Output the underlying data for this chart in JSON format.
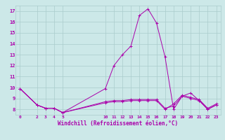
{
  "bg_color": "#cce8e8",
  "line_color": "#aa00aa",
  "grid_color": "#aacccc",
  "title": "Windchill (Refroidissement éolien,°C)",
  "xlim": [
    -0.5,
    23.5
  ],
  "ylim": [
    7.5,
    17.5
  ],
  "yticks": [
    8,
    9,
    10,
    11,
    12,
    13,
    14,
    15,
    16,
    17
  ],
  "xticks": [
    0,
    2,
    3,
    4,
    5,
    10,
    11,
    12,
    13,
    14,
    15,
    16,
    17,
    18,
    19,
    20,
    21,
    22,
    23
  ],
  "series1_x": [
    0,
    2,
    3,
    4,
    5,
    10,
    11,
    12,
    13,
    14,
    15,
    16,
    17,
    18,
    19,
    20,
    21,
    22,
    23
  ],
  "series1_y": [
    9.9,
    8.4,
    8.1,
    8.1,
    7.7,
    9.9,
    12.0,
    13.0,
    13.8,
    16.6,
    17.2,
    15.9,
    12.8,
    8.0,
    9.2,
    9.5,
    8.8,
    8.0,
    8.4
  ],
  "series2_x": [
    0,
    2,
    3,
    4,
    5,
    10,
    11,
    12,
    13,
    14,
    15,
    16,
    17,
    18,
    19,
    20,
    21,
    22,
    23
  ],
  "series2_y": [
    9.9,
    8.4,
    8.1,
    8.1,
    7.7,
    8.7,
    8.8,
    8.8,
    8.9,
    8.9,
    8.9,
    8.9,
    8.1,
    8.3,
    9.2,
    9.0,
    8.8,
    8.0,
    8.4
  ],
  "series3_x": [
    0,
    2,
    3,
    4,
    5,
    10,
    11,
    12,
    13,
    14,
    15,
    16,
    17,
    18,
    19,
    20,
    21,
    22,
    23
  ],
  "series3_y": [
    9.9,
    8.4,
    8.1,
    8.1,
    7.7,
    8.6,
    8.7,
    8.7,
    8.8,
    8.8,
    8.8,
    8.8,
    8.0,
    8.5,
    9.3,
    9.1,
    8.9,
    8.1,
    8.5
  ]
}
